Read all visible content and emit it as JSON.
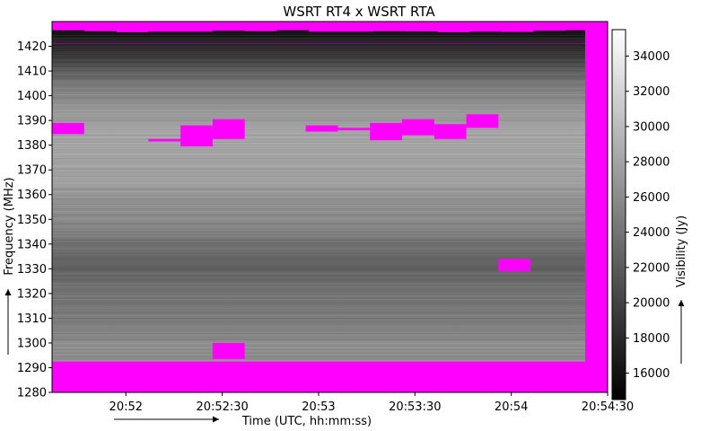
{
  "chart_data": {
    "type": "heatmap",
    "title": "WSRT RT4 x WSRT RTA",
    "xlabel": "Time (UTC, hh:mm:ss)",
    "ylabel": "Frequency (MHz)",
    "colorbar_label": "Visibility (Jy)",
    "x_range_seconds": [
      3097,
      3270
    ],
    "xlim_labels": [
      "20:51:37",
      "20:54:30"
    ],
    "ylim": [
      1280,
      1430
    ],
    "x_ticks": [
      {
        "t": 3120,
        "label": "20:52"
      },
      {
        "t": 3150,
        "label": "20:52:30"
      },
      {
        "t": 3180,
        "label": "20:53"
      },
      {
        "t": 3210,
        "label": "20:53:30"
      },
      {
        "t": 3240,
        "label": "20:54"
      },
      {
        "t": 3270,
        "label": "20:54:30"
      }
    ],
    "y_ticks": [
      1280,
      1290,
      1300,
      1310,
      1320,
      1330,
      1340,
      1350,
      1360,
      1370,
      1380,
      1390,
      1400,
      1410,
      1420
    ],
    "colorbar_range": [
      14500,
      35500
    ],
    "colorbar_ticks": [
      16000,
      18000,
      20000,
      22000,
      24000,
      26000,
      28000,
      30000,
      32000,
      34000
    ],
    "colormap": "gray",
    "flag_color": "#ff00ff",
    "data_extent_seconds": [
      3097,
      3263
    ],
    "data_extent_mhz": [
      1292.5,
      1426.5
    ],
    "frequency_profile": [
      {
        "f": 1292.5,
        "v": 26500
      },
      {
        "f": 1300,
        "v": 26000
      },
      {
        "f": 1310,
        "v": 24500
      },
      {
        "f": 1320,
        "v": 24000
      },
      {
        "f": 1330,
        "v": 22500
      },
      {
        "f": 1335,
        "v": 23000
      },
      {
        "f": 1345,
        "v": 25000
      },
      {
        "f": 1355,
        "v": 26500
      },
      {
        "f": 1365,
        "v": 27500
      },
      {
        "f": 1375,
        "v": 28000
      },
      {
        "f": 1382,
        "v": 28500
      },
      {
        "f": 1390,
        "v": 27500
      },
      {
        "f": 1398,
        "v": 26000
      },
      {
        "f": 1405,
        "v": 24500
      },
      {
        "f": 1410,
        "v": 22000
      },
      {
        "f": 1415,
        "v": 19500
      },
      {
        "f": 1420,
        "v": 17500
      },
      {
        "f": 1426.5,
        "v": 16000
      }
    ],
    "flagged_regions": [
      {
        "t0": 3097,
        "t1": 3107,
        "f0": 1384.5,
        "f1": 1389
      },
      {
        "t0": 3127,
        "t1": 3137,
        "f0": 1381.5,
        "f1": 1382.5
      },
      {
        "t0": 3137,
        "t1": 3147,
        "f0": 1379.5,
        "f1": 1388
      },
      {
        "t0": 3147,
        "t1": 3157,
        "f0": 1382.5,
        "f1": 1390.5
      },
      {
        "t0": 3147,
        "t1": 3157,
        "f0": 1293.5,
        "f1": 1300
      },
      {
        "t0": 3176,
        "t1": 3186,
        "f0": 1385.5,
        "f1": 1388
      },
      {
        "t0": 3186,
        "t1": 3196,
        "f0": 1386,
        "f1": 1387
      },
      {
        "t0": 3196,
        "t1": 3206,
        "f0": 1382,
        "f1": 1389
      },
      {
        "t0": 3206,
        "t1": 3216,
        "f0": 1384,
        "f1": 1390.5
      },
      {
        "t0": 3216,
        "t1": 3226,
        "f0": 1382.5,
        "f1": 1388.5
      },
      {
        "t0": 3226,
        "t1": 3236,
        "f0": 1387,
        "f1": 1392.5
      },
      {
        "t0": 3236,
        "t1": 3246,
        "f0": 1329,
        "f1": 1334
      }
    ]
  }
}
